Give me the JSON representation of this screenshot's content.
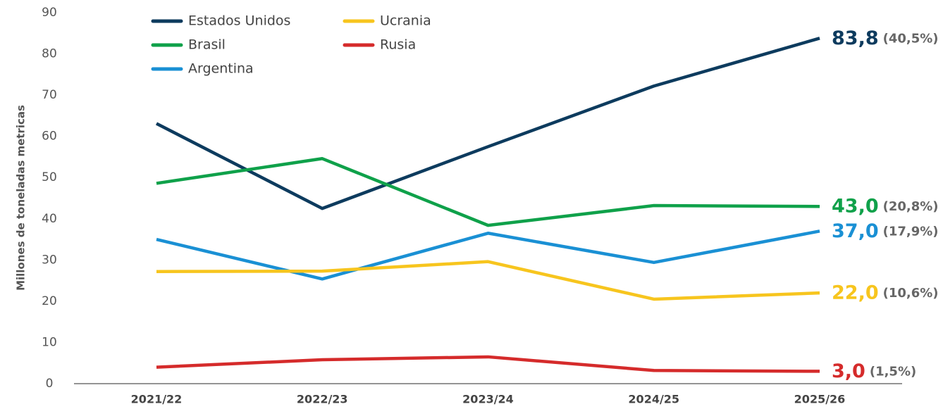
{
  "chart_data": {
    "type": "line",
    "y_label": "Millones de toneladas metricas",
    "categories": [
      "2021/22",
      "2022/23",
      "2023/24",
      "2024/25",
      "2025/26"
    ],
    "series": [
      {
        "name": "Estados Unidos",
        "color": "#0d3b5e",
        "values": [
          63.1,
          42.5,
          57.5,
          72.2,
          83.8
        ],
        "value_labels": [
          null,
          null,
          null,
          null,
          "83,8"
        ],
        "share_label": "(40,5%)"
      },
      {
        "name": "Brasil",
        "color": "#0fa14a",
        "values": [
          48.6,
          54.6,
          38.4,
          43.2,
          43.0
        ],
        "value_labels": [
          null,
          null,
          null,
          null,
          "43,0"
        ],
        "share_label": "(20,8%)"
      },
      {
        "name": "Argentina",
        "color": "#1a90d4",
        "values": [
          35.0,
          25.4,
          36.5,
          29.4,
          37.0
        ],
        "value_labels": [
          null,
          null,
          null,
          null,
          "37,0"
        ],
        "share_label": "(17,9%)"
      },
      {
        "name": "Ucrania",
        "color": "#f7c51e",
        "values": [
          27.2,
          27.3,
          29.6,
          20.5,
          22.0
        ],
        "value_labels": [
          null,
          null,
          null,
          null,
          "22,0"
        ],
        "share_label": "(10,6%)"
      },
      {
        "name": "Rusia",
        "color": "#d52b2b",
        "values": [
          4.0,
          5.8,
          6.5,
          3.2,
          3.0
        ],
        "value_labels": [
          null,
          null,
          null,
          null,
          "3,0"
        ],
        "share_label": "(1,5%)"
      }
    ],
    "ylim": [
      0,
      90
    ],
    "yticks": [
      0,
      10,
      20,
      30,
      40,
      50,
      60,
      70,
      80,
      90
    ],
    "grid": false,
    "legend": "top-left"
  }
}
